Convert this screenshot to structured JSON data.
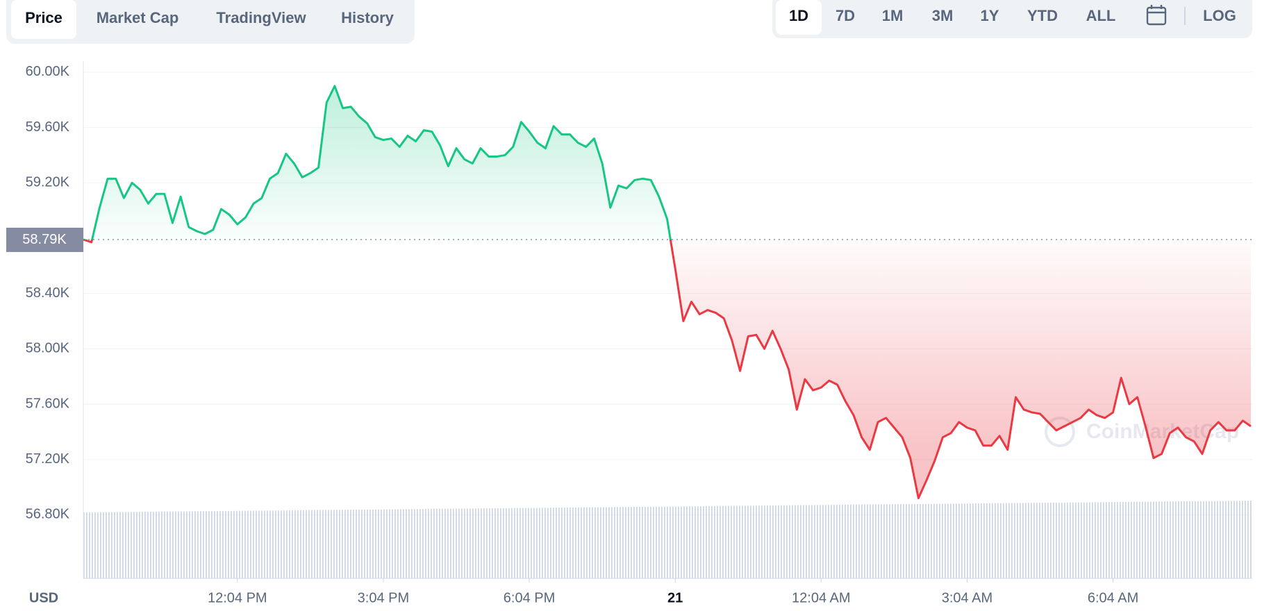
{
  "ui": {
    "tabs": [
      "Price",
      "Market Cap",
      "TradingView",
      "History"
    ],
    "selected_tab": 0,
    "ranges": [
      "1D",
      "7D",
      "1M",
      "3M",
      "1Y",
      "YTD",
      "ALL"
    ],
    "selected_range": 0,
    "log_button": "LOG"
  },
  "chart_data": {
    "type": "line",
    "currency": "USD",
    "watermark": "CoinMarketCap",
    "categories": [
      null,
      null,
      null,
      null,
      null,
      null,
      null,
      null,
      null,
      null,
      null,
      null,
      null,
      null,
      null,
      null,
      null,
      null,
      null,
      "12:04 PM",
      null,
      null,
      null,
      null,
      null,
      null,
      null,
      null,
      null,
      null,
      null,
      null,
      null,
      null,
      null,
      null,
      null,
      "3:04 PM",
      null,
      null,
      null,
      null,
      null,
      null,
      null,
      null,
      null,
      null,
      null,
      null,
      null,
      null,
      null,
      null,
      null,
      "6:04 PM",
      null,
      null,
      null,
      null,
      null,
      null,
      null,
      null,
      null,
      null,
      null,
      null,
      null,
      null,
      null,
      null,
      null,
      "21",
      null,
      null,
      null,
      null,
      null,
      null,
      null,
      null,
      null,
      null,
      null,
      null,
      null,
      null,
      null,
      null,
      null,
      "12:04 AM",
      null,
      null,
      null,
      null,
      null,
      null,
      null,
      null,
      null,
      null,
      null,
      null,
      null,
      null,
      null,
      null,
      null,
      "3:04 AM",
      null,
      null,
      null,
      null,
      null,
      null,
      null,
      null,
      null,
      null,
      null,
      null,
      null,
      null,
      null,
      null,
      null,
      "6:04 AM",
      null,
      null,
      null,
      null,
      null,
      null,
      null,
      null,
      null,
      null,
      null,
      null,
      null,
      null,
      null,
      null,
      null
    ],
    "values": [
      58790,
      58770,
      59020,
      59230,
      59230,
      59090,
      59200,
      59150,
      59050,
      59120,
      59120,
      58910,
      59100,
      58880,
      58850,
      58830,
      58860,
      59010,
      58970,
      58900,
      58950,
      59050,
      59090,
      59230,
      59270,
      59410,
      59340,
      59240,
      59270,
      59310,
      59780,
      59900,
      59740,
      59750,
      59680,
      59630,
      59530,
      59510,
      59520,
      59460,
      59540,
      59500,
      59580,
      59570,
      59470,
      59320,
      59450,
      59370,
      59340,
      59450,
      59390,
      59390,
      59400,
      59460,
      59640,
      59570,
      59490,
      59450,
      59610,
      59550,
      59550,
      59490,
      59460,
      59520,
      59340,
      59020,
      59180,
      59160,
      59220,
      59230,
      59220,
      59100,
      58940,
      58580,
      58200,
      58340,
      58250,
      58280,
      58260,
      58220,
      58060,
      57840,
      58090,
      58100,
      58000,
      58130,
      58000,
      57850,
      57560,
      57780,
      57700,
      57720,
      57770,
      57740,
      57620,
      57520,
      57360,
      57270,
      57470,
      57500,
      57430,
      57360,
      57210,
      56920,
      57050,
      57190,
      57360,
      57390,
      57470,
      57430,
      57410,
      57300,
      57300,
      57370,
      57270,
      57650,
      57560,
      57540,
      57530,
      57470,
      57410,
      57440,
      57470,
      57500,
      57560,
      57520,
      57500,
      57540,
      57790,
      57600,
      57650,
      57440,
      57210,
      57240,
      57390,
      57430,
      57360,
      57330,
      57240,
      57410,
      57470,
      57410,
      57410,
      57480,
      57440
    ],
    "colors": {
      "above": "#16c784",
      "below": "#ea3943"
    },
    "ylim": [
      56340,
      60080
    ],
    "yticks": [
      {
        "value": 60000,
        "label": "60.00K"
      },
      {
        "value": 59600,
        "label": "59.60K"
      },
      {
        "value": 59200,
        "label": "59.20K"
      },
      {
        "value": 58400,
        "label": "58.40K"
      },
      {
        "value": 58000,
        "label": "58.00K"
      },
      {
        "value": 57600,
        "label": "57.60K"
      },
      {
        "value": 57200,
        "label": "57.20K"
      },
      {
        "value": 56800,
        "label": "56.80K"
      }
    ],
    "reference_line": {
      "value": 58790,
      "label": "58.79K"
    },
    "grid": true
  }
}
